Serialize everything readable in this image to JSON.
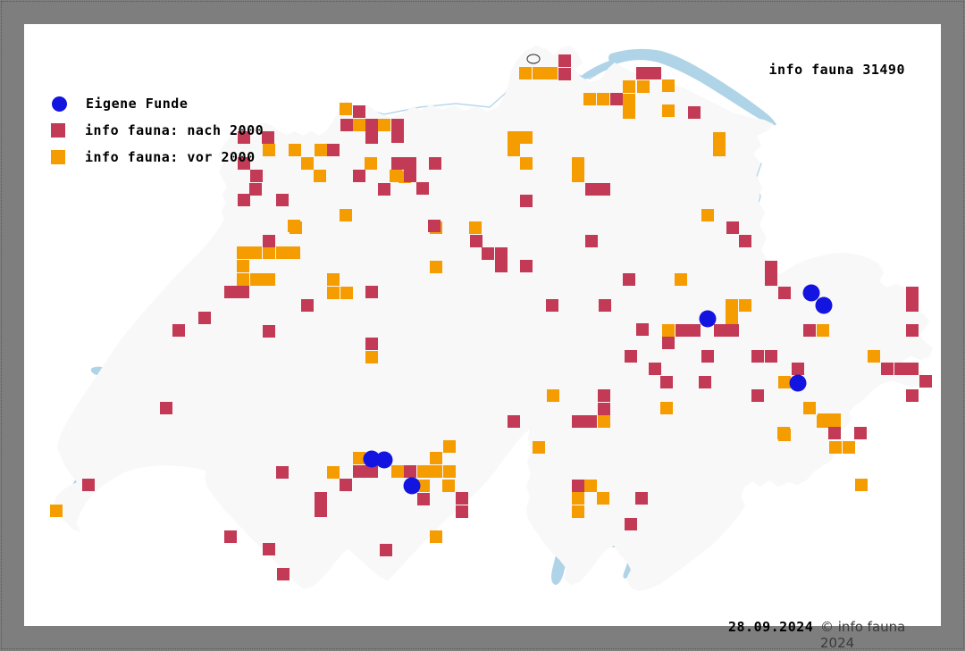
{
  "title": "info fauna 31490",
  "footer": {
    "date": "28.09.2024",
    "copyright": "© info fauna 2024"
  },
  "legend": {
    "items": [
      {
        "key": "eigene",
        "label": "Eigene Funde",
        "shape": "circle",
        "color": "#1414e0"
      },
      {
        "key": "nach2000",
        "label": "info fauna: nach 2000",
        "shape": "square",
        "color": "#c23a55"
      },
      {
        "key": "vor2000",
        "label": "info fauna: vor 2000",
        "shape": "square",
        "color": "#f59c00"
      }
    ]
  },
  "map": {
    "colors": {
      "frame": "#7e7e7e",
      "panel": "#ffffff",
      "land": "#f8f8f8",
      "relief": "#d9d9d9",
      "lake": "#afd3e7",
      "river": "#b8d8ec",
      "border": "#2e2e2e",
      "eigene": "#1414e0",
      "nach2000": "#c23a55",
      "vor2000": "#f59c00"
    },
    "marker": {
      "square_size": 14,
      "circle_radius": 9.5
    },
    "points": {
      "vor2000": [
        [
          387,
          122
        ],
        [
          402,
          140
        ],
        [
          430,
          140
        ],
        [
          453,
          198
        ],
        [
          301,
          168
        ],
        [
          330,
          168
        ],
        [
          359,
          168
        ],
        [
          344,
          183
        ],
        [
          415,
          183
        ],
        [
          358,
          197
        ],
        [
          443,
          197
        ],
        [
          387,
          241
        ],
        [
          329,
          253
        ],
        [
          588,
          82
        ],
        [
          603,
          82
        ],
        [
          617,
          82
        ],
        [
          704,
          97
        ],
        [
          720,
          97
        ],
        [
          748,
          96
        ],
        [
          660,
          111
        ],
        [
          675,
          111
        ],
        [
          704,
          112
        ],
        [
          704,
          126
        ],
        [
          748,
          124
        ],
        [
          805,
          155
        ],
        [
          805,
          168
        ],
        [
          575,
          154
        ],
        [
          589,
          154
        ],
        [
          575,
          168
        ],
        [
          589,
          183
        ],
        [
          647,
          183
        ],
        [
          647,
          197
        ],
        [
          792,
          241
        ],
        [
          331,
          255
        ],
        [
          272,
          283
        ],
        [
          286,
          283
        ],
        [
          301,
          283
        ],
        [
          316,
          283
        ],
        [
          329,
          283
        ],
        [
          272,
          298
        ],
        [
          272,
          313
        ],
        [
          287,
          313
        ],
        [
          301,
          313
        ],
        [
          373,
          313
        ],
        [
          373,
          328
        ],
        [
          388,
          328
        ],
        [
          488,
          255
        ],
        [
          532,
          255
        ],
        [
          488,
          299
        ],
        [
          416,
          400
        ],
        [
          619,
          443
        ],
        [
          676,
          472
        ],
        [
          603,
          501
        ],
        [
          762,
          313
        ],
        [
          819,
          342
        ],
        [
          834,
          342
        ],
        [
          819,
          356
        ],
        [
          748,
          370
        ],
        [
          921,
          370
        ],
        [
          978,
          399
        ],
        [
          878,
          428
        ],
        [
          906,
          457
        ],
        [
          746,
          457
        ],
        [
          922,
          470
        ],
        [
          934,
          470
        ],
        [
          878,
          487
        ],
        [
          402,
          513
        ],
        [
          488,
          513
        ],
        [
          503,
          500
        ],
        [
          445,
          528
        ],
        [
          474,
          528
        ],
        [
          488,
          528
        ],
        [
          503,
          528
        ],
        [
          474,
          544
        ],
        [
          502,
          544
        ],
        [
          488,
          601
        ],
        [
          63,
          572
        ],
        [
          373,
          529
        ],
        [
          661,
          544
        ],
        [
          647,
          558
        ],
        [
          675,
          558
        ],
        [
          647,
          573
        ],
        [
          877,
          485
        ],
        [
          921,
          472
        ],
        [
          934,
          472
        ],
        [
          935,
          501
        ],
        [
          950,
          501
        ],
        [
          964,
          543
        ]
      ],
      "nach2000": [
        [
          402,
          125
        ],
        [
          388,
          140
        ],
        [
          416,
          140
        ],
        [
          445,
          140
        ],
        [
          273,
          154
        ],
        [
          300,
          154
        ],
        [
          416,
          154
        ],
        [
          445,
          153
        ],
        [
          373,
          168
        ],
        [
          273,
          183
        ],
        [
          445,
          183
        ],
        [
          459,
          183
        ],
        [
          487,
          183
        ],
        [
          287,
          197
        ],
        [
          402,
          197
        ],
        [
          459,
          197
        ],
        [
          430,
          212
        ],
        [
          473,
          211
        ],
        [
          286,
          212
        ],
        [
          273,
          224
        ],
        [
          316,
          224
        ],
        [
          486,
          253
        ],
        [
          632,
          68
        ],
        [
          632,
          83
        ],
        [
          719,
          82
        ],
        [
          733,
          82
        ],
        [
          690,
          111
        ],
        [
          777,
          126
        ],
        [
          662,
          212
        ],
        [
          676,
          212
        ],
        [
          589,
          225
        ],
        [
          820,
          255
        ],
        [
          834,
          270
        ],
        [
          301,
          270
        ],
        [
          258,
          327
        ],
        [
          272,
          327
        ],
        [
          344,
          342
        ],
        [
          229,
          356
        ],
        [
          200,
          370
        ],
        [
          301,
          371
        ],
        [
          186,
          457
        ],
        [
          533,
          270
        ],
        [
          546,
          284
        ],
        [
          561,
          284
        ],
        [
          561,
          298
        ],
        [
          589,
          298
        ],
        [
          662,
          270
        ],
        [
          416,
          327
        ],
        [
          618,
          342
        ],
        [
          677,
          342
        ],
        [
          704,
          313
        ],
        [
          719,
          369
        ],
        [
          416,
          385
        ],
        [
          706,
          399
        ],
        [
          676,
          443
        ],
        [
          676,
          458
        ],
        [
          575,
          472
        ],
        [
          647,
          472
        ],
        [
          661,
          472
        ],
        [
          863,
          299
        ],
        [
          863,
          313
        ],
        [
          878,
          328
        ],
        [
          1021,
          328
        ],
        [
          1021,
          342
        ],
        [
          763,
          370
        ],
        [
          777,
          370
        ],
        [
          806,
          370
        ],
        [
          820,
          370
        ],
        [
          906,
          370
        ],
        [
          1021,
          370
        ],
        [
          748,
          384
        ],
        [
          792,
          399
        ],
        [
          848,
          399
        ],
        [
          863,
          399
        ],
        [
          893,
          413
        ],
        [
          993,
          413
        ],
        [
          1008,
          413
        ],
        [
          1021,
          413
        ],
        [
          733,
          413
        ],
        [
          1036,
          427
        ],
        [
          746,
          428
        ],
        [
          789,
          428
        ],
        [
          1021,
          443
        ],
        [
          848,
          443
        ],
        [
          934,
          485
        ],
        [
          963,
          485
        ],
        [
          99,
          543
        ],
        [
          316,
          529
        ],
        [
          359,
          558
        ],
        [
          359,
          572
        ],
        [
          258,
          601
        ],
        [
          301,
          615
        ],
        [
          317,
          643
        ],
        [
          402,
          528
        ],
        [
          416,
          528
        ],
        [
          387,
          543
        ],
        [
          459,
          528
        ],
        [
          474,
          559
        ],
        [
          517,
          558
        ],
        [
          517,
          573
        ],
        [
          432,
          616
        ],
        [
          647,
          544
        ],
        [
          718,
          558
        ],
        [
          706,
          587
        ]
      ],
      "eigene": [
        [
          908,
          328
        ],
        [
          922,
          342
        ],
        [
          792,
          357
        ],
        [
          893,
          429
        ],
        [
          416,
          514
        ],
        [
          430,
          515
        ],
        [
          461,
          544
        ]
      ]
    }
  }
}
